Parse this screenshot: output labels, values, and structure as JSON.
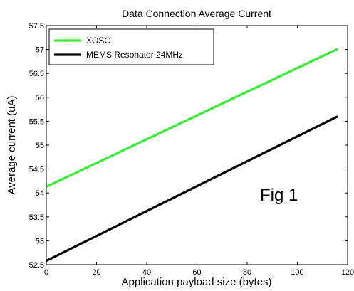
{
  "chart_data": {
    "type": "line",
    "title": "Data Connection Average Current",
    "xlabel": "Application payload size (bytes)",
    "ylabel": "Average current (uA)",
    "xlim": [
      0,
      120
    ],
    "ylim": [
      52.5,
      57.5
    ],
    "xticks": [
      0,
      20,
      40,
      60,
      80,
      100,
      120
    ],
    "yticks": [
      52.5,
      53,
      53.5,
      54,
      54.5,
      55,
      55.5,
      56,
      56.5,
      57,
      57.5
    ],
    "grid": false,
    "legend_position": "top-left",
    "annotation": "Fig 1",
    "series": [
      {
        "name": "XOSC",
        "color": "#33ee33",
        "x": [
          0,
          116
        ],
        "y": [
          54.13,
          57.01
        ]
      },
      {
        "name": "MEMS Resonator 24MHz",
        "color": "#000000",
        "x": [
          0,
          116
        ],
        "y": [
          52.58,
          55.6
        ]
      }
    ]
  }
}
